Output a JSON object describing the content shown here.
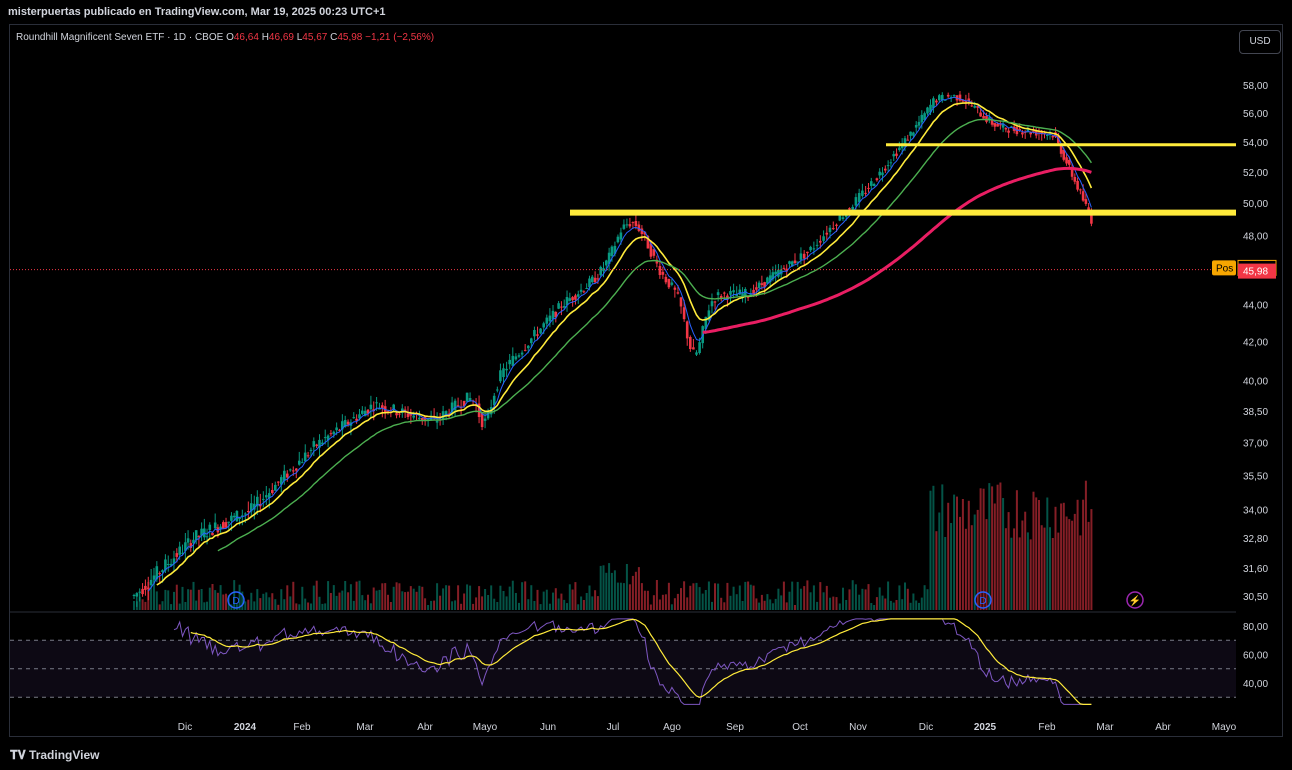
{
  "header": {
    "publisher_line": "misterpuertas publicado en TradingView.com, Mar 19, 2025 00:23 UTC+1"
  },
  "legend": {
    "name": "Roundhill Magnificent Seven ETF · 1D · CBOE",
    "open_label": "O",
    "open": "46,64",
    "high_label": "H",
    "high": "46,69",
    "low_label": "L",
    "low": "45,67",
    "close_label": "C",
    "close": "45,98",
    "change": "−1,21 (−2,56%)"
  },
  "currency_button": "USD",
  "footer": {
    "logo_text": "TradingView"
  },
  "colors": {
    "up": "#089981",
    "down": "#f23645",
    "ema_short": "#2962ff",
    "ema_mid": "#ffeb3b",
    "ema_long": "#4caf50",
    "ma200": "#e91e63",
    "levels": "#ffeb3b",
    "rsi": "#7e57c2",
    "rsi_ma": "#ffeb3b"
  },
  "chart_data": {
    "type": "candlestick",
    "price_axis": {
      "ticks": [
        "58,00",
        "56,00",
        "54,00",
        "52,00",
        "50,00",
        "48,00",
        "46,00",
        "44,00",
        "42,00",
        "40,00",
        "38,50",
        "37,00",
        "35,50",
        "34,00",
        "32,80",
        "31,60",
        "30,50"
      ],
      "current_price": "45,98",
      "position_label": "Pos",
      "position_price": "46,05"
    },
    "time_axis": [
      "Dic",
      "2024",
      "Feb",
      "Mar",
      "Abr",
      "Mayo",
      "Jun",
      "Jul",
      "Ago",
      "Sep",
      "Oct",
      "Nov",
      "Dic",
      "2025",
      "Feb",
      "Mar",
      "Abr",
      "Mayo"
    ],
    "horizontal_levels": [
      53.8,
      49.4
    ],
    "events": [
      {
        "type": "dividend",
        "label": "D",
        "month": "Dic 2023"
      },
      {
        "type": "dividend",
        "label": "D",
        "month": "Dic 2024"
      },
      {
        "type": "earnings",
        "label": "⚡",
        "month": "Mar 2025"
      }
    ],
    "price_path_monthly_close": [
      [
        "Nov 2023",
        30.5
      ],
      [
        "Dic 2023",
        32.8
      ],
      [
        "Ene 2024",
        34.0
      ],
      [
        "Feb 2024",
        36.8
      ],
      [
        "Mar 2024",
        38.8
      ],
      [
        "Abr 2024",
        38.0
      ],
      [
        "May 2024",
        40.2
      ],
      [
        "Jun 2024",
        44.0
      ],
      [
        "Jul 2024",
        46.5
      ],
      [
        "Ago 2024",
        44.5
      ],
      [
        "Sep 2024",
        44.6
      ],
      [
        "Oct 2024",
        47.0
      ],
      [
        "Nov 2024",
        51.5
      ],
      [
        "Dic 2024",
        56.5
      ],
      [
        "Ene 2025",
        55.0
      ],
      [
        "Feb 2025",
        54.5
      ],
      [
        "Mar 2025",
        45.98
      ]
    ],
    "rsi": {
      "ticks": [
        "80,00",
        "60,00",
        "40,00"
      ],
      "upper": 70,
      "mid": 50,
      "lower": 30
    }
  }
}
